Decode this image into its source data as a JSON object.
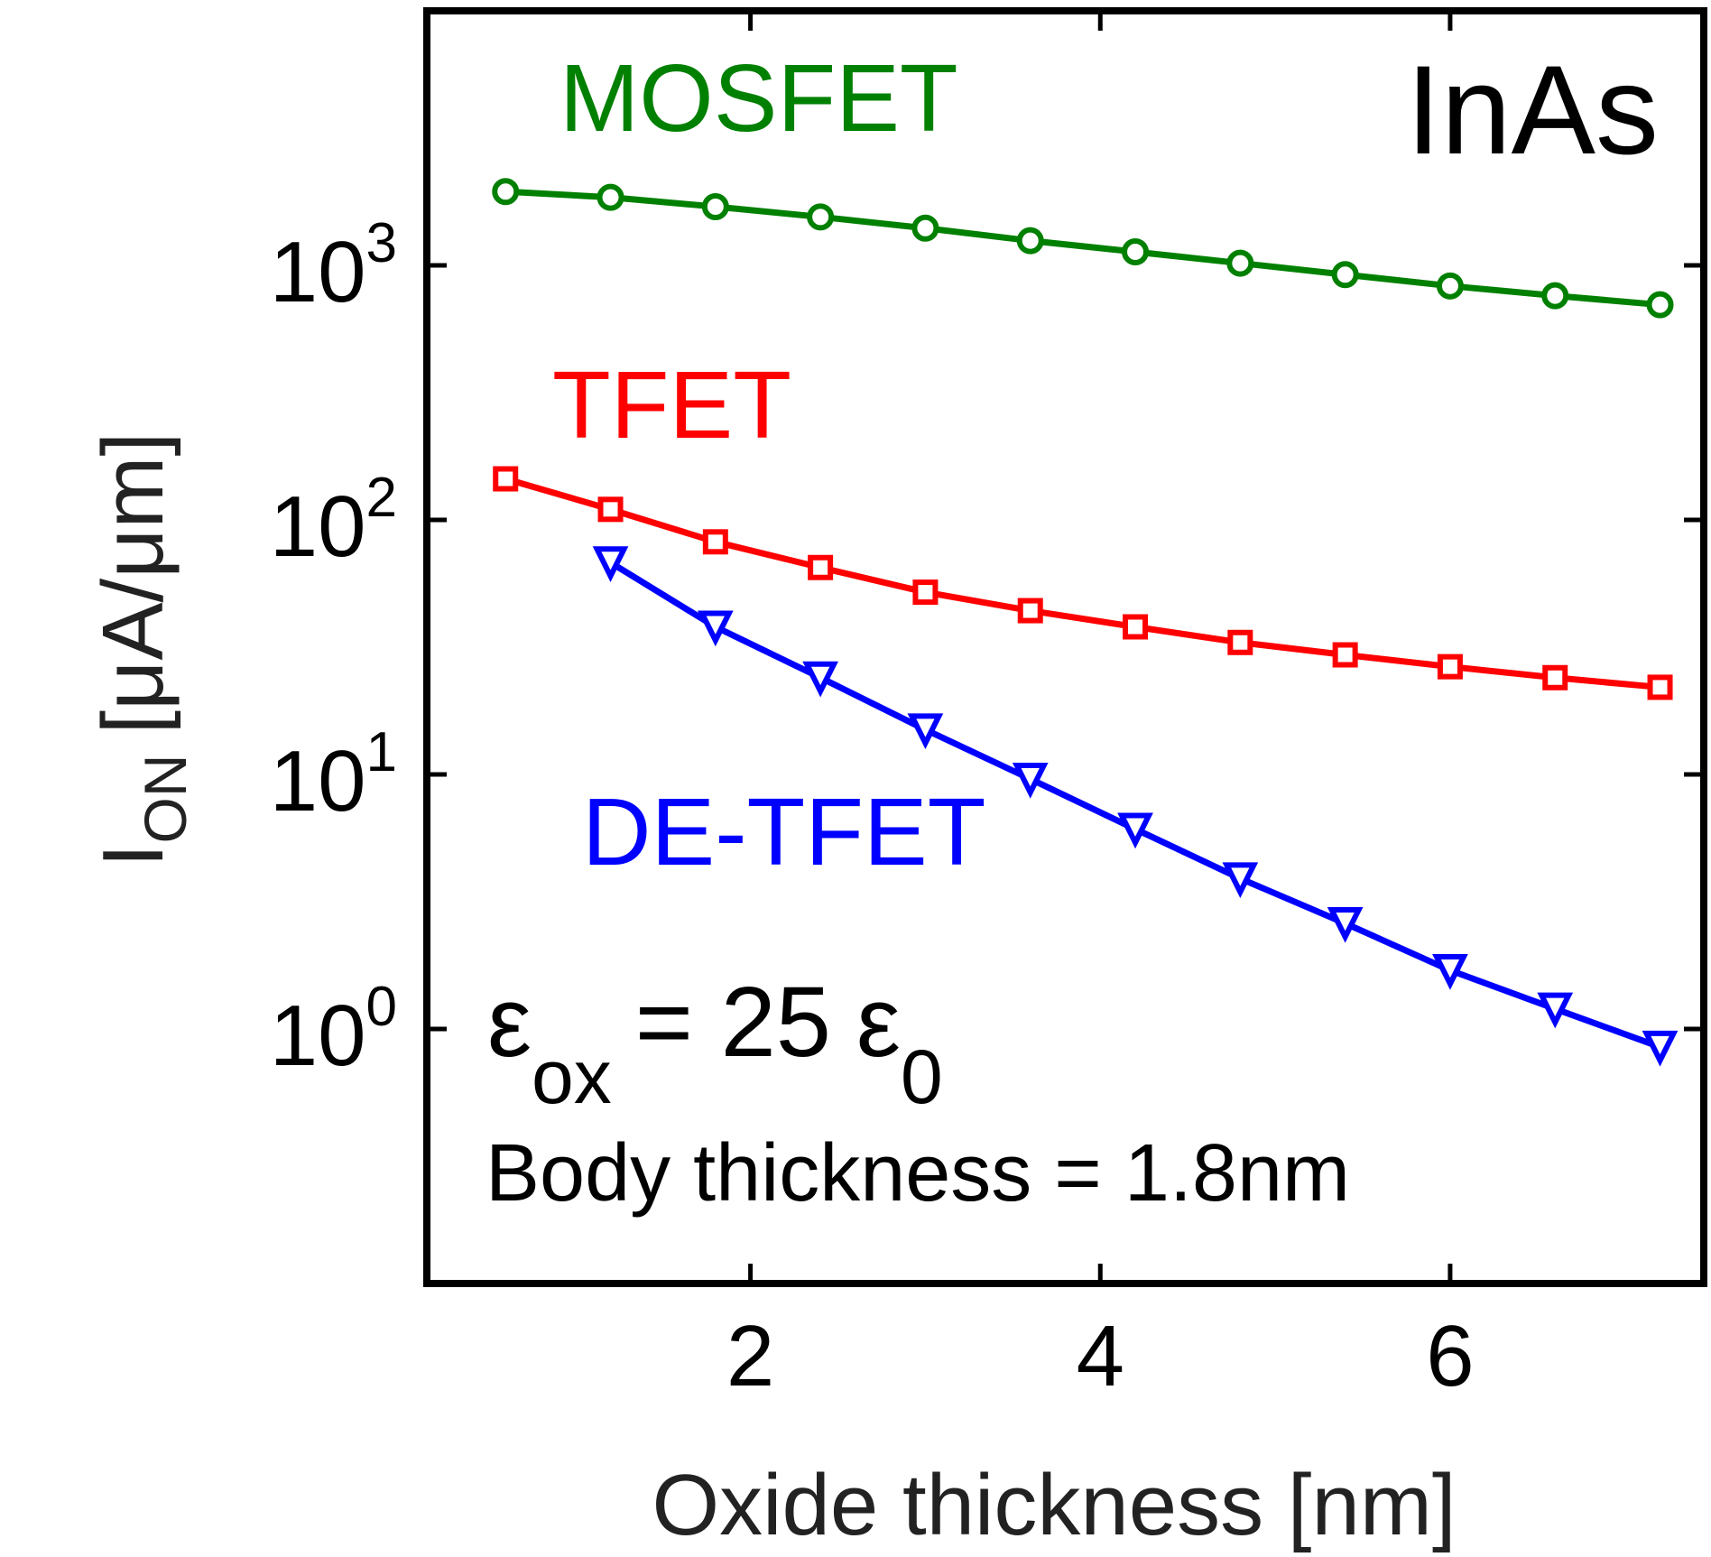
{
  "chart_data": {
    "type": "line",
    "title": "",
    "corner_label": "InAs",
    "xlabel": "Oxide thickness [nm]",
    "ylabel": {
      "main": "I",
      "subscript": "ON",
      "units": "[μA/μm]"
    },
    "x_scale": "linear",
    "y_scale": "log",
    "xlim": [
      0.15,
      7.45
    ],
    "ylim": [
      0.1,
      10000
    ],
    "x_ticks": [
      2,
      4,
      6
    ],
    "y_ticks": [
      {
        "value": 1,
        "base": "10",
        "exponent": "0"
      },
      {
        "value": 10,
        "base": "10",
        "exponent": "1"
      },
      {
        "value": 100,
        "base": "10",
        "exponent": "2"
      },
      {
        "value": 1000,
        "base": "10",
        "exponent": "3"
      }
    ],
    "grid": false,
    "series": [
      {
        "name": "MOSFET",
        "color": "#008000",
        "marker": "circle",
        "x": [
          0.6,
          1.2,
          1.8,
          2.4,
          3.0,
          3.6,
          4.2,
          4.8,
          5.4,
          6.0,
          6.6,
          7.2
        ],
        "y": [
          1950,
          1850,
          1700,
          1550,
          1400,
          1250,
          1130,
          1020,
          920,
          830,
          760,
          700
        ]
      },
      {
        "name": "TFET",
        "color": "#ff0000",
        "marker": "square",
        "x": [
          0.6,
          1.2,
          1.8,
          2.4,
          3.0,
          3.6,
          4.2,
          4.8,
          5.4,
          6.0,
          6.6,
          7.2
        ],
        "y": [
          145,
          110,
          82,
          65,
          52,
          44,
          38,
          33,
          29.5,
          26.5,
          24,
          22
        ]
      },
      {
        "name": "DE-TFET",
        "color": "#0000ff",
        "marker": "triangle-down",
        "x": [
          1.2,
          1.8,
          2.4,
          3.0,
          3.6,
          4.2,
          4.8,
          5.4,
          6.0,
          6.6,
          7.2
        ],
        "y": [
          68,
          38,
          24,
          15,
          9.6,
          6.1,
          3.9,
          2.6,
          1.7,
          1.2,
          0.85
        ]
      }
    ],
    "annotations": {
      "epsilon_symbol": "ε",
      "epsilon_sub": "ox",
      "epsilon_mid": "= 25",
      "epsilon_zero_symbol": "ε",
      "epsilon_zero_sub": "0",
      "body_thickness": "Body thickness = 1.8nm"
    }
  }
}
